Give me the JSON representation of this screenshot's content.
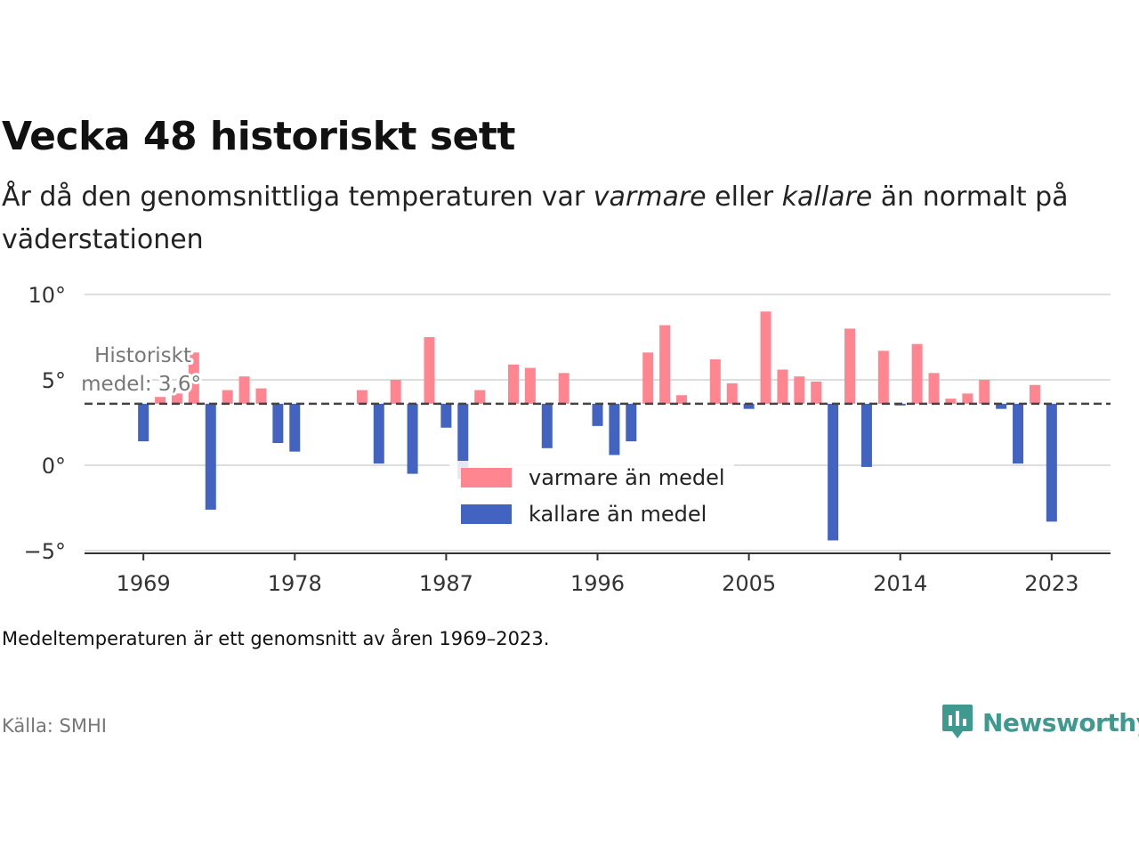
{
  "title": "Vecka 48 historiskt sett",
  "subtitle": {
    "part1": "År då den genomsnittliga temperaturen var ",
    "warm_word": "varmare",
    "part2": " eller ",
    "cold_word": "kallare",
    "part3": " än normalt på väderstationen"
  },
  "note": "Medeltemperaturen är ett genomsnitt av åren 1969–2023.",
  "source": "Källa: SMHI",
  "logo": {
    "text": "Newsworthy",
    "icon": "newsworthy-logo-icon"
  },
  "colors": {
    "warm": "#ff8591",
    "cold": "#4263c0",
    "grid": "#dddddd",
    "axis": "#333333",
    "reference": "#444444"
  },
  "chart_data": {
    "type": "bar",
    "baseline": 3.6,
    "reference_label_line1": "Historiskt",
    "reference_label_line2": "medel: 3,6°",
    "ylim": [
      -5,
      10
    ],
    "yticks": [
      {
        "value": -5,
        "label": "−5°"
      },
      {
        "value": 0,
        "label": "0°"
      },
      {
        "value": 5,
        "label": "5°"
      },
      {
        "value": 10,
        "label": "10°"
      }
    ],
    "xlim": [
      1965.5,
      2026.5
    ],
    "xticks": [
      {
        "value": 1969,
        "label": "1969"
      },
      {
        "value": 1978,
        "label": "1978"
      },
      {
        "value": 1987,
        "label": "1987"
      },
      {
        "value": 1996,
        "label": "1996"
      },
      {
        "value": 2005,
        "label": "2005"
      },
      {
        "value": 2014,
        "label": "2014"
      },
      {
        "value": 2023,
        "label": "2023"
      }
    ],
    "legend": [
      {
        "name": "varmare än medel",
        "key": "warm"
      },
      {
        "name": "kallare än medel",
        "key": "cold"
      }
    ],
    "series": [
      {
        "year": 1969,
        "value": 1.4
      },
      {
        "year": 1970,
        "value": 4.0
      },
      {
        "year": 1971,
        "value": 4.2
      },
      {
        "year": 1972,
        "value": 6.6
      },
      {
        "year": 1973,
        "value": -2.6
      },
      {
        "year": 1974,
        "value": 4.4
      },
      {
        "year": 1975,
        "value": 5.2
      },
      {
        "year": 1976,
        "value": 4.5
      },
      {
        "year": 1977,
        "value": 1.3
      },
      {
        "year": 1978,
        "value": 0.8
      },
      {
        "year": 1982,
        "value": 4.4
      },
      {
        "year": 1983,
        "value": 0.1
      },
      {
        "year": 1984,
        "value": 5.0
      },
      {
        "year": 1985,
        "value": -0.5
      },
      {
        "year": 1986,
        "value": 7.5
      },
      {
        "year": 1987,
        "value": 2.2
      },
      {
        "year": 1988,
        "value": -0.8
      },
      {
        "year": 1989,
        "value": 4.4
      },
      {
        "year": 1991,
        "value": 5.9
      },
      {
        "year": 1992,
        "value": 5.7
      },
      {
        "year": 1993,
        "value": 1.0
      },
      {
        "year": 1994,
        "value": 5.4
      },
      {
        "year": 1996,
        "value": 2.3
      },
      {
        "year": 1997,
        "value": 0.6
      },
      {
        "year": 1998,
        "value": 1.4
      },
      {
        "year": 1999,
        "value": 6.6
      },
      {
        "year": 2000,
        "value": 8.2
      },
      {
        "year": 2001,
        "value": 4.1
      },
      {
        "year": 2003,
        "value": 6.2
      },
      {
        "year": 2004,
        "value": 4.8
      },
      {
        "year": 2005,
        "value": 3.3
      },
      {
        "year": 2006,
        "value": 9.0
      },
      {
        "year": 2007,
        "value": 5.6
      },
      {
        "year": 2008,
        "value": 5.2
      },
      {
        "year": 2009,
        "value": 4.9
      },
      {
        "year": 2010,
        "value": -4.4
      },
      {
        "year": 2011,
        "value": 8.0
      },
      {
        "year": 2012,
        "value": -0.1
      },
      {
        "year": 2013,
        "value": 6.7
      },
      {
        "year": 2014,
        "value": 3.5
      },
      {
        "year": 2015,
        "value": 7.1
      },
      {
        "year": 2016,
        "value": 5.4
      },
      {
        "year": 2017,
        "value": 3.9
      },
      {
        "year": 2018,
        "value": 4.2
      },
      {
        "year": 2019,
        "value": 5.0
      },
      {
        "year": 2020,
        "value": 3.3
      },
      {
        "year": 2021,
        "value": 0.1
      },
      {
        "year": 2022,
        "value": 4.7
      },
      {
        "year": 2023,
        "value": -3.3
      }
    ]
  }
}
